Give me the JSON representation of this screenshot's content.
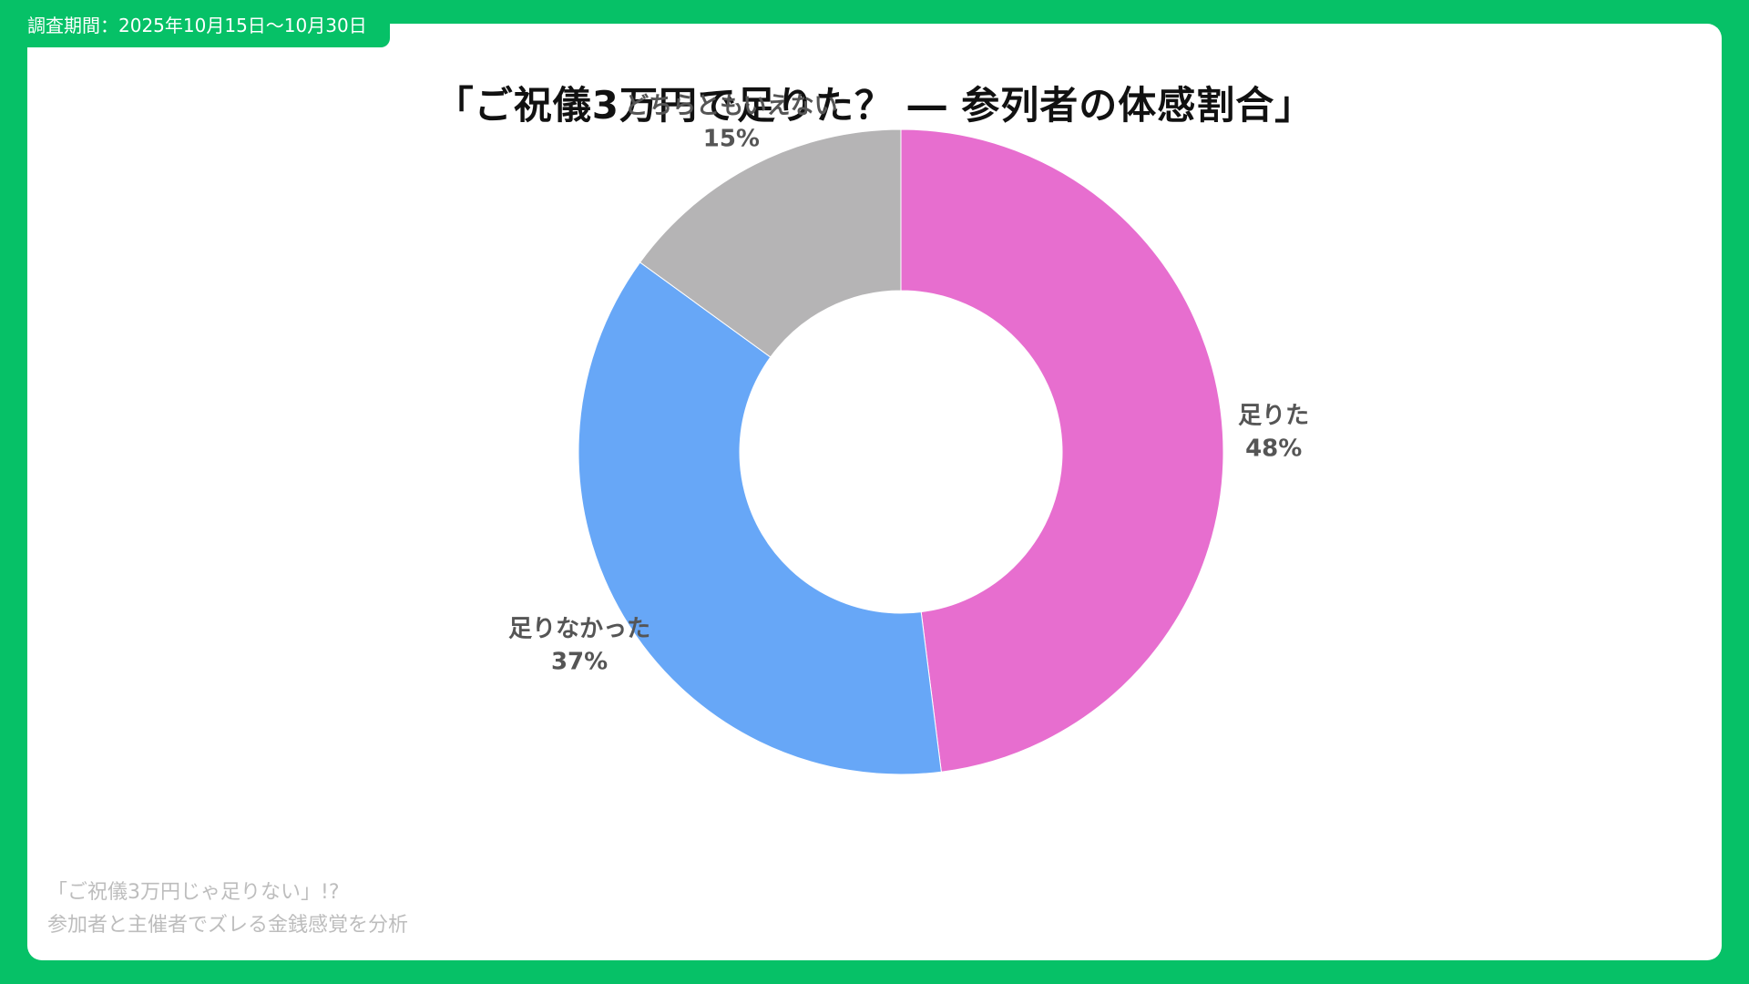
{
  "header": {
    "period": "調査期間：2025年10月15日〜10月30日"
  },
  "footer": {
    "line1": "「ご祝儀3万円じゃ足りない」!?",
    "line2": "参加者と主催者でズレる金銭感覚を分析"
  },
  "colors": {
    "frame": "#06C167",
    "enough": "#E76ECF",
    "not_enough": "#67A7F7",
    "neither": "#B5B4B5"
  },
  "chart_data": {
    "type": "pie",
    "variant": "donut",
    "title": "「ご祝儀3万円で足りた？ ― 参列者の体感割合」",
    "unit": "%",
    "slices": [
      {
        "label": "足りた",
        "value": 48,
        "value_label": "48%",
        "color": "#E76ECF"
      },
      {
        "label": "足りなかった",
        "value": 37,
        "value_label": "37%",
        "color": "#67A7F7"
      },
      {
        "label": "どちらともいえない",
        "value": 15,
        "value_label": "15%",
        "color": "#B5B4B5"
      }
    ],
    "start_angle_deg": 0,
    "direction": "clockwise",
    "legend": "none"
  }
}
